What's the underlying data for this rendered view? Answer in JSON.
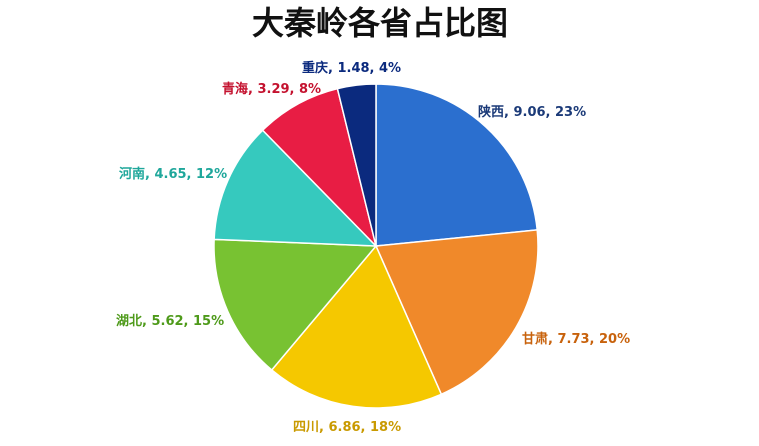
{
  "chart_data": {
    "type": "pie",
    "title": "大秦岭各省占比图",
    "slices": [
      {
        "name": "陕西",
        "value": 9.06,
        "percent": "23%",
        "color": "#2b6fcf",
        "label_color": "#1b3a78"
      },
      {
        "name": "甘肃",
        "value": 7.73,
        "percent": "20%",
        "color": "#f0892a",
        "label_color": "#c8620c"
      },
      {
        "name": "四川",
        "value": 6.86,
        "percent": "18%",
        "color": "#f5c800",
        "label_color": "#c99a00"
      },
      {
        "name": "湖北",
        "value": 5.62,
        "percent": "15%",
        "color": "#78c232",
        "label_color": "#4e9a1a"
      },
      {
        "name": "河南",
        "value": 4.65,
        "percent": "12%",
        "color": "#36c9be",
        "label_color": "#1fa79b"
      },
      {
        "name": "青海",
        "value": 3.29,
        "percent": "8%",
        "color": "#e81d44",
        "label_color": "#c4122f"
      },
      {
        "name": "重庆",
        "value": 1.48,
        "percent": "4%",
        "color": "#0b2a7e",
        "label_color": "#0b2a7e"
      }
    ]
  }
}
